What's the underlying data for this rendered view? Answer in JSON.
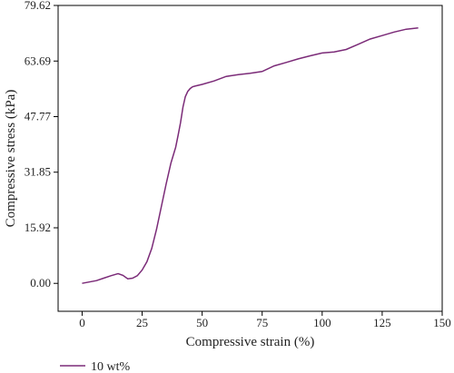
{
  "chart_data": {
    "type": "line",
    "title": "",
    "xlabel": "Compressive strain (%)",
    "ylabel": "Compressive stress (kPa)",
    "xlim": [
      -10,
      150
    ],
    "ylim": [
      -8,
      79.62
    ],
    "x_ticks": [
      0,
      25,
      50,
      75,
      100,
      125,
      150
    ],
    "x_tick_labels": [
      "0",
      "25",
      "50",
      "75",
      "100",
      "125",
      "150"
    ],
    "y_ticks": [
      0,
      15.92,
      31.85,
      47.77,
      63.69,
      79.62
    ],
    "y_tick_labels": [
      "0.00",
      "15.92",
      "31.85",
      "47.77",
      "63.69",
      "79.62"
    ],
    "grid": false,
    "legend_position": "bottom-left",
    "series": [
      {
        "name": "10 wt%",
        "color": "#7b2b78",
        "x": [
          0,
          3,
          6,
          9,
          12,
          15,
          17,
          19,
          21,
          23,
          25,
          27,
          29,
          31,
          33,
          35,
          37,
          39,
          40,
          41,
          42,
          43,
          44,
          45,
          46,
          47,
          50,
          55,
          60,
          65,
          70,
          75,
          80,
          85,
          90,
          95,
          100,
          105,
          110,
          115,
          120,
          125,
          130,
          135,
          140
        ],
        "values": [
          0,
          0.4,
          0.8,
          1.5,
          2.2,
          2.8,
          2.3,
          1.3,
          1.5,
          2.2,
          3.8,
          6.2,
          10.0,
          15.5,
          22.0,
          28.5,
          34.5,
          39.0,
          42.5,
          46.0,
          50.5,
          53.5,
          55.0,
          55.8,
          56.3,
          56.5,
          57.0,
          58.0,
          59.3,
          59.8,
          60.2,
          60.7,
          62.3,
          63.3,
          64.3,
          65.2,
          66.0,
          66.3,
          67.0,
          68.5,
          70.0,
          71.0,
          72.0,
          72.8,
          73.2
        ]
      }
    ]
  }
}
